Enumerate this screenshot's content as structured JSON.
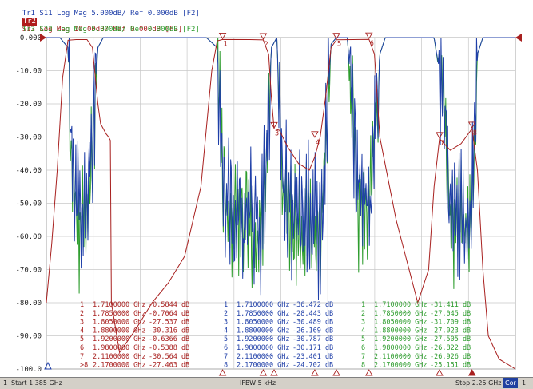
{
  "traces": [
    {
      "id": "Tr1",
      "label": "Tr1 S11 Log Mag 5.000dB/ Ref 0.000dB [F2]",
      "color": "#1f3fa8"
    },
    {
      "id": "Tr2",
      "label": "S12 Log Mag 10.00dB/ Ref 0.000dB [F2]",
      "short": "Tr2",
      "color": "#a8201f"
    },
    {
      "id": "Tr3",
      "label": "Tr3 S22 Log Mag 5.000dB/ Ref 0.000dB [F2]",
      "color": "#2e9d2e"
    }
  ],
  "status": {
    "channel": "1",
    "start": "Start 1.385 GHz",
    "ifbw": "IFBW 5 kHz",
    "stop": "Stop 2.25 GHz",
    "cor": "Cor",
    "trailing": "1"
  },
  "chart_data": {
    "type": "line",
    "ylabel_ticks": [
      "0.000",
      "-10.00",
      "-20.00",
      "-30.00",
      "-40.00",
      "-50.00",
      "-60.00",
      "-70.00",
      "-80.00",
      "-90.00",
      "-100.0"
    ],
    "ylim": [
      -100,
      0
    ],
    "xlim_ghz": [
      1.385,
      2.25
    ],
    "grid": true,
    "series": [
      {
        "name": "S11",
        "color": "#1f3fa8",
        "markers": [
          {
            "n": "1",
            "freq": "1.7100000 GHz",
            "val": "-36.472 dB"
          },
          {
            "n": "2",
            "freq": "1.7850000 GHz",
            "val": "-28.443 dB"
          },
          {
            "n": "3",
            "freq": "1.8050000 GHz",
            "val": "-30.489 dB"
          },
          {
            "n": "4",
            "freq": "1.8800000 GHz",
            "val": "-26.169 dB"
          },
          {
            "n": "5",
            "freq": "1.9200000 GHz",
            "val": "-30.787 dB"
          },
          {
            "n": "6",
            "freq": "1.9800000 GHz",
            "val": "-30.171 dB"
          },
          {
            "n": "7",
            "freq": "2.1100000 GHz",
            "val": "-23.401 dB"
          },
          {
            "n": "8",
            "freq": "2.1700000 GHz",
            "val": "-24.702 dB"
          }
        ]
      },
      {
        "name": "S12",
        "color": "#a8201f",
        "markers": [
          {
            "n": "1",
            "freq": "1.7100000 GHz",
            "val": "-0.5844 dB"
          },
          {
            "n": "2",
            "freq": "1.7850000 GHz",
            "val": "-0.7064 dB"
          },
          {
            "n": "3",
            "freq": "1.8050000 GHz",
            "val": "-27.537 dB"
          },
          {
            "n": "4",
            "freq": "1.8800000 GHz",
            "val": "-30.316 dB"
          },
          {
            "n": "5",
            "freq": "1.9200000 GHz",
            "val": "-0.6366 dB"
          },
          {
            "n": "6",
            "freq": "1.9800000 GHz",
            "val": "-0.5388 dB"
          },
          {
            "n": "7",
            "freq": "2.1100000 GHz",
            "val": "-30.564 dB"
          },
          {
            "n": ">8",
            "freq": "2.1700000 GHz",
            "val": "-27.463 dB"
          }
        ]
      },
      {
        "name": "S22",
        "color": "#2e9d2e",
        "markers": [
          {
            "n": "1",
            "freq": "1.7100000 GHz",
            "val": "-31.411 dB"
          },
          {
            "n": "2",
            "freq": "1.7850000 GHz",
            "val": "-27.045 dB"
          },
          {
            "n": "3",
            "freq": "1.8050000 GHz",
            "val": "-31.709 dB"
          },
          {
            "n": "4",
            "freq": "1.8800000 GHz",
            "val": "-27.023 dB"
          },
          {
            "n": "5",
            "freq": "1.9200000 GHz",
            "val": "-27.505 dB"
          },
          {
            "n": "6",
            "freq": "1.9800000 GHz",
            "val": "-26.822 dB"
          },
          {
            "n": "7",
            "freq": "2.1100000 GHz",
            "val": "-26.926 dB"
          },
          {
            "n": "8",
            "freq": "2.1700000 GHz",
            "val": "-25.151 dB"
          }
        ]
      }
    ],
    "plot_marker_labels": [
      "1",
      "2",
      "3",
      "4",
      "5",
      "6",
      "7",
      "8"
    ],
    "s12_curve": [
      [
        1.385,
        -80
      ],
      [
        1.395,
        -62
      ],
      [
        1.405,
        -40
      ],
      [
        1.415,
        -12
      ],
      [
        1.425,
        -0.8
      ],
      [
        1.44,
        -0.6
      ],
      [
        1.46,
        -0.6
      ],
      [
        1.47,
        -3
      ],
      [
        1.48,
        -20
      ],
      [
        1.485,
        -26
      ],
      [
        1.49,
        -27.5
      ],
      [
        1.495,
        -29
      ],
      [
        1.5,
        -30
      ],
      [
        1.503,
        -31
      ],
      [
        1.505,
        -80
      ],
      [
        1.52,
        -95
      ],
      [
        1.55,
        -88
      ],
      [
        1.58,
        -80
      ],
      [
        1.61,
        -74
      ],
      [
        1.64,
        -66
      ],
      [
        1.67,
        -45
      ],
      [
        1.69,
        -10
      ],
      [
        1.7,
        -1
      ],
      [
        1.71,
        -0.58
      ],
      [
        1.76,
        -0.6
      ],
      [
        1.785,
        -0.7
      ],
      [
        1.795,
        -5
      ],
      [
        1.8,
        -18
      ],
      [
        1.805,
        -27.5
      ],
      [
        1.815,
        -28
      ],
      [
        1.83,
        -33
      ],
      [
        1.85,
        -38
      ],
      [
        1.87,
        -40
      ],
      [
        1.88,
        -36
      ],
      [
        1.89,
        -30
      ],
      [
        1.9,
        -18
      ],
      [
        1.91,
        -3
      ],
      [
        1.92,
        -0.64
      ],
      [
        1.95,
        -0.6
      ],
      [
        1.98,
        -0.54
      ],
      [
        1.99,
        -5
      ],
      [
        2.0,
        -30
      ],
      [
        2.03,
        -55
      ],
      [
        2.07,
        -80
      ],
      [
        2.09,
        -70
      ],
      [
        2.1,
        -45
      ],
      [
        2.11,
        -30.5
      ],
      [
        2.13,
        -34
      ],
      [
        2.15,
        -32
      ],
      [
        2.17,
        -27.5
      ],
      [
        2.18,
        -40
      ],
      [
        2.19,
        -70
      ],
      [
        2.2,
        -90
      ],
      [
        2.22,
        -97
      ],
      [
        2.25,
        -100
      ]
    ],
    "s11_envelope": [
      [
        1.385,
        0
      ],
      [
        1.41,
        0
      ],
      [
        1.425,
        -3
      ],
      [
        1.43,
        -30
      ],
      [
        1.44,
        -50
      ],
      [
        1.45,
        -55
      ],
      [
        1.46,
        -48
      ],
      [
        1.47,
        -30
      ],
      [
        1.48,
        -3
      ],
      [
        1.49,
        0
      ],
      [
        1.68,
        0
      ],
      [
        1.7,
        -3
      ],
      [
        1.71,
        -40
      ],
      [
        1.72,
        -50
      ],
      [
        1.78,
        -55
      ],
      [
        1.79,
        -40
      ],
      [
        1.8,
        -3
      ],
      [
        1.81,
        0
      ],
      [
        1.82,
        -40
      ],
      [
        1.84,
        -55
      ],
      [
        1.87,
        -52
      ],
      [
        1.89,
        -60
      ],
      [
        1.9,
        -30
      ],
      [
        1.91,
        -2
      ],
      [
        1.92,
        0
      ],
      [
        1.94,
        0
      ],
      [
        1.96,
        -45
      ],
      [
        1.98,
        -50
      ],
      [
        2.0,
        -5
      ],
      [
        2.01,
        0
      ],
      [
        2.1,
        0
      ],
      [
        2.12,
        -20
      ],
      [
        2.13,
        -50
      ],
      [
        2.16,
        -55
      ],
      [
        2.17,
        -50
      ],
      [
        2.18,
        -5
      ],
      [
        2.19,
        0
      ],
      [
        2.25,
        0
      ]
    ]
  }
}
